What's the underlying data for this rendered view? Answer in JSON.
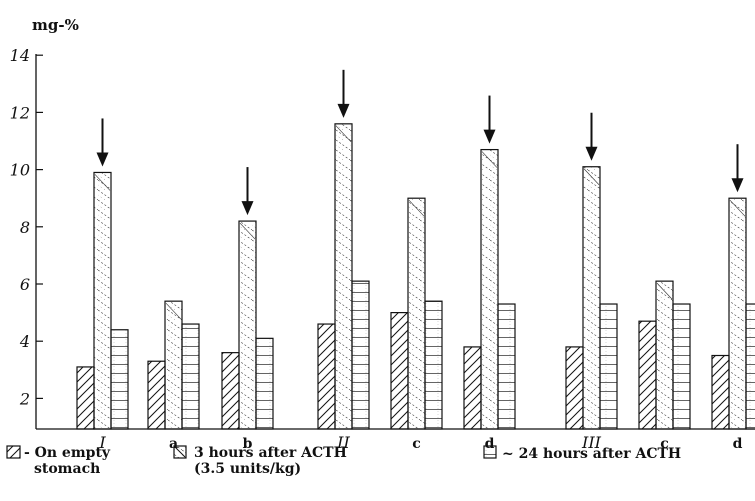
{
  "chart_data": {
    "type": "bar",
    "ylabel": "mg-%",
    "ylim": [
      1,
      14
    ],
    "yticks": [
      2,
      4,
      6,
      8,
      10,
      12,
      14
    ],
    "categories": [
      "I",
      "a",
      "b",
      "II",
      "c",
      "d",
      "III",
      "c",
      "d"
    ],
    "series": [
      {
        "name": "On empty stomach",
        "values": [
          3.1,
          3.3,
          3.6,
          4.6,
          5.0,
          3.8,
          3.8,
          4.7,
          3.5
        ]
      },
      {
        "name": "3 hours after ACTH (3.5 units/kg)",
        "values": [
          9.9,
          5.4,
          8.2,
          11.6,
          9.0,
          10.7,
          10.1,
          6.1,
          9.0
        ]
      },
      {
        "name": "~ 24 hours after ACTH",
        "values": [
          4.4,
          4.6,
          4.1,
          6.1,
          5.4,
          5.3,
          5.3,
          5.3,
          5.3
        ]
      }
    ],
    "arrow_marked_series": "3 hours after ACTH (3.5 units/kg)",
    "arrow_categories": [
      "I",
      "b",
      "II",
      "d",
      "III",
      "d"
    ],
    "legend": {
      "position": "bottom",
      "items": [
        {
          "line1": "- On empty",
          "line2": "stomach"
        },
        {
          "line1": "3 hours after ACTH",
          "line2": "(3.5 units/kg)"
        },
        {
          "line1": "~ 24 hours after ACTH",
          "line2": ""
        }
      ]
    },
    "colors": {
      "ink": "#111111",
      "background": "#ffffff"
    }
  }
}
